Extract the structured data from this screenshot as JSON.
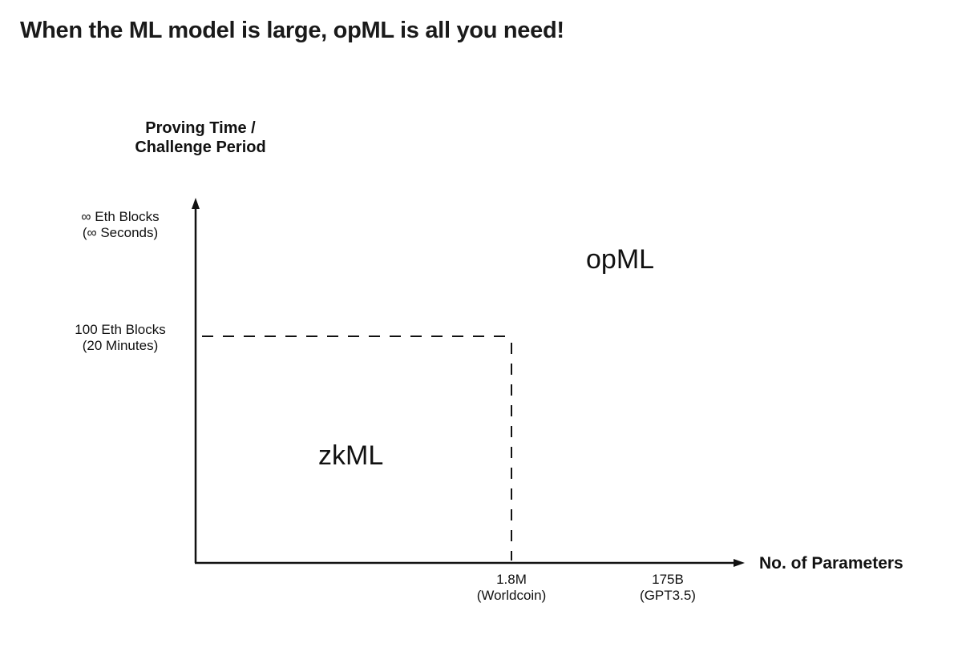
{
  "heading": "When the ML model is large, opML is all you need!",
  "diagram": {
    "y_axis": {
      "title_lines": [
        "Proving Time /",
        "Challenge Period"
      ],
      "ticks": [
        {
          "lines": [
            "∞ Eth Blocks",
            "(∞ Seconds)"
          ]
        },
        {
          "lines": [
            "100 Eth Blocks",
            "(20 Minutes)"
          ]
        }
      ]
    },
    "x_axis": {
      "title": "No. of Parameters",
      "ticks": [
        {
          "lines": [
            "1.8M",
            "(Worldcoin)"
          ]
        },
        {
          "lines": [
            "175B",
            "(GPT3.5)"
          ]
        }
      ]
    },
    "regions": {
      "upper": "opML",
      "lower": "zkML"
    },
    "colors": {
      "axis": "#111111",
      "text": "#111111",
      "heading": "#1a1a1a"
    }
  }
}
